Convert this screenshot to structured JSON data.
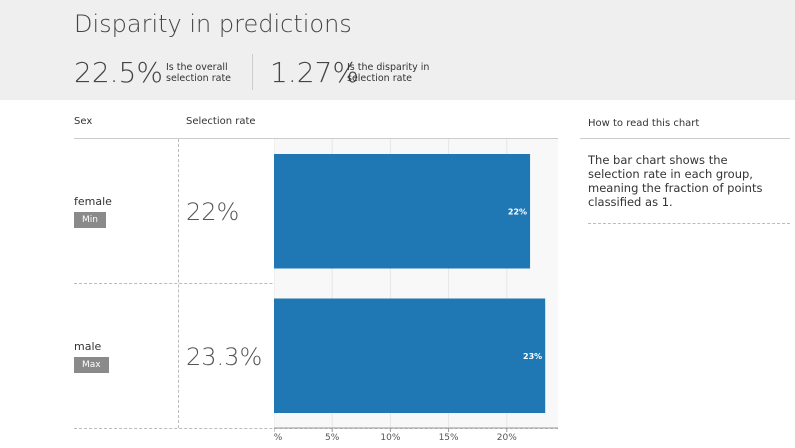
{
  "header": {
    "title": "Disparity in predictions",
    "metrics": [
      {
        "value": "22.5%",
        "label": "Is the overall selection rate"
      },
      {
        "value": "1.27%",
        "label": "Is the disparity in selection rate"
      }
    ]
  },
  "table": {
    "columns": [
      "Sex",
      "Selection rate"
    ],
    "rows": [
      {
        "badge": "Min",
        "rate": "22%"
      },
      {
        "badge": "Max",
        "rate": "23.3%"
      }
    ]
  },
  "chart_data": {
    "type": "bar",
    "orientation": "horizontal",
    "categories": [
      "female",
      "male"
    ],
    "values": [
      22,
      23.3
    ],
    "value_labels": [
      "22%",
      "23%"
    ],
    "color": "#1f77b4",
    "xlim": [
      0,
      24.4
    ],
    "xticks": [
      {
        "value": 0,
        "label": "%"
      },
      {
        "value": 5,
        "label": "5%"
      },
      {
        "value": 10,
        "label": "10%"
      },
      {
        "value": 15,
        "label": "15%"
      },
      {
        "value": 20,
        "label": "20%"
      }
    ],
    "grid": true
  },
  "help": {
    "title": "How to read this chart",
    "text": "The bar chart shows the selection rate in each group, meaning the fraction of points classified as 1."
  }
}
